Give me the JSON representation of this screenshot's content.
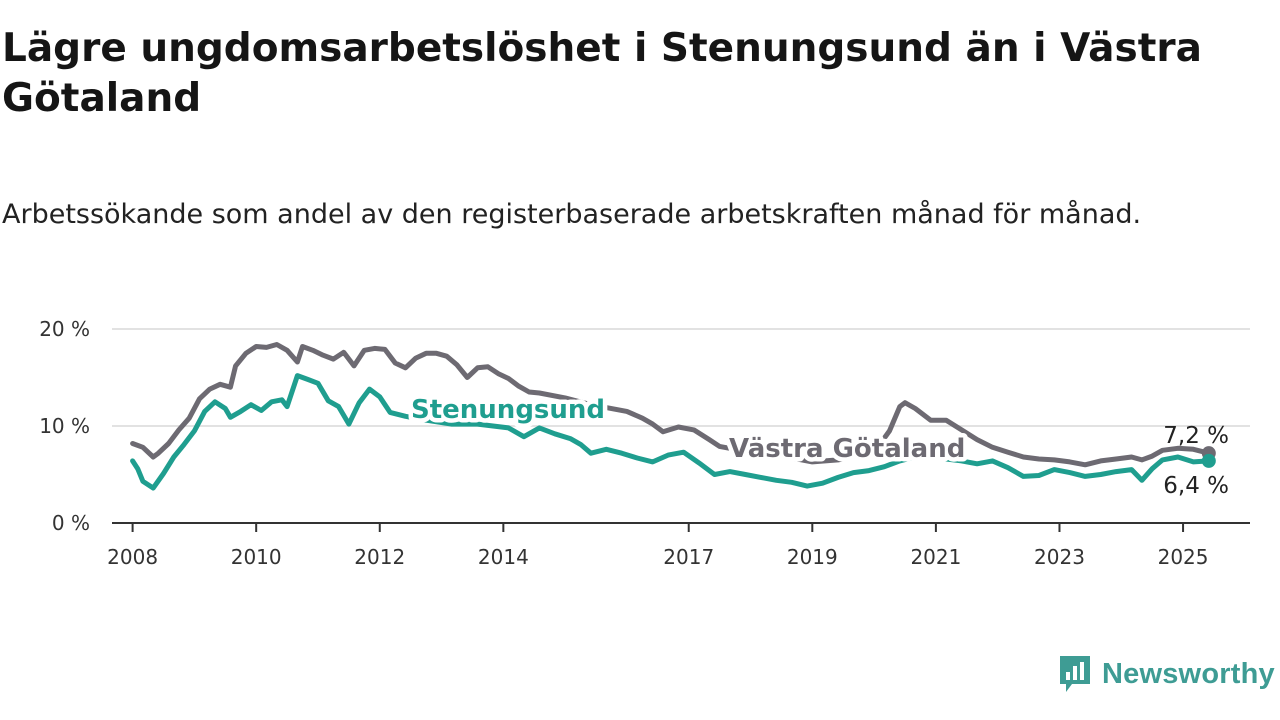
{
  "title": "Lägre ungdomsarbetslöshet i Stenungsund än i Västra Götaland",
  "subtitle": "Arbetssökande som andel av den registerbaserade arbetskraften månad för månad.",
  "brand": {
    "name": "Newsworthy",
    "icon": "newsworthy-logo-icon",
    "color": "#3e9c94"
  },
  "chart_data": {
    "type": "line",
    "x_type": "date",
    "ylim": [
      0,
      20
    ],
    "xlim": [
      "2007-09",
      "2026-02"
    ],
    "y_ticks": [
      {
        "value": 0,
        "label": "0 %"
      },
      {
        "value": 10,
        "label": "10 %"
      },
      {
        "value": 20,
        "label": "20 %"
      }
    ],
    "x_ticks": [
      {
        "value": "2008-01",
        "label": "2008"
      },
      {
        "value": "2010-01",
        "label": "2010"
      },
      {
        "value": "2012-01",
        "label": "2012"
      },
      {
        "value": "2014-01",
        "label": "2014"
      },
      {
        "value": "2017-01",
        "label": "2017"
      },
      {
        "value": "2019-01",
        "label": "2019"
      },
      {
        "value": "2021-01",
        "label": "2021"
      },
      {
        "value": "2023-01",
        "label": "2023"
      },
      {
        "value": "2025-01",
        "label": "2025"
      }
    ],
    "grid": true,
    "series": [
      {
        "name": "Västra Götaland",
        "color": "#6d6a72",
        "end_label": "7,2 %",
        "points": [
          [
            "2008-01",
            8.2
          ],
          [
            "2008-03",
            7.8
          ],
          [
            "2008-05",
            6.8
          ],
          [
            "2008-06",
            7.2
          ],
          [
            "2008-08",
            8.2
          ],
          [
            "2008-10",
            9.6
          ],
          [
            "2008-12",
            10.8
          ],
          [
            "2009-02",
            12.8
          ],
          [
            "2009-04",
            13.8
          ],
          [
            "2009-06",
            14.3
          ],
          [
            "2009-08",
            14.0
          ],
          [
            "2009-09",
            16.2
          ],
          [
            "2009-11",
            17.5
          ],
          [
            "2010-01",
            18.2
          ],
          [
            "2010-03",
            18.1
          ],
          [
            "2010-05",
            18.4
          ],
          [
            "2010-07",
            17.8
          ],
          [
            "2010-09",
            16.6
          ],
          [
            "2010-10",
            18.2
          ],
          [
            "2010-12",
            17.8
          ],
          [
            "2011-02",
            17.3
          ],
          [
            "2011-04",
            16.9
          ],
          [
            "2011-06",
            17.6
          ],
          [
            "2011-08",
            16.2
          ],
          [
            "2011-10",
            17.8
          ],
          [
            "2011-12",
            18.0
          ],
          [
            "2012-02",
            17.9
          ],
          [
            "2012-04",
            16.5
          ],
          [
            "2012-06",
            16.0
          ],
          [
            "2012-08",
            17.0
          ],
          [
            "2012-10",
            17.5
          ],
          [
            "2012-12",
            17.5
          ],
          [
            "2013-02",
            17.2
          ],
          [
            "2013-04",
            16.3
          ],
          [
            "2013-06",
            15.0
          ],
          [
            "2013-08",
            16.0
          ],
          [
            "2013-10",
            16.1
          ],
          [
            "2013-12",
            15.4
          ],
          [
            "2014-02",
            14.9
          ],
          [
            "2014-04",
            14.1
          ],
          [
            "2014-06",
            13.5
          ],
          [
            "2014-08",
            13.4
          ],
          [
            "2015-01",
            12.9
          ],
          [
            "2015-06",
            12.2
          ],
          [
            "2016-01",
            11.5
          ],
          [
            "2016-04",
            10.8
          ],
          [
            "2016-06",
            10.2
          ],
          [
            "2016-08",
            9.4
          ],
          [
            "2016-11",
            9.9
          ],
          [
            "2017-02",
            9.6
          ],
          [
            "2017-05",
            8.6
          ],
          [
            "2017-07",
            7.9
          ],
          [
            "2018-01",
            7.3
          ],
          [
            "2018-06",
            7.0
          ],
          [
            "2019-01",
            6.3
          ],
          [
            "2019-06",
            6.5
          ],
          [
            "2020-01",
            7.3
          ],
          [
            "2020-04",
            9.5
          ],
          [
            "2020-06",
            12.0
          ],
          [
            "2020-07",
            12.4
          ],
          [
            "2020-09",
            11.8
          ],
          [
            "2020-12",
            10.6
          ],
          [
            "2021-03",
            10.6
          ],
          [
            "2021-06",
            9.6
          ],
          [
            "2021-09",
            8.6
          ],
          [
            "2021-12",
            7.8
          ],
          [
            "2022-03",
            7.3
          ],
          [
            "2022-06",
            6.8
          ],
          [
            "2022-09",
            6.6
          ],
          [
            "2022-12",
            6.5
          ],
          [
            "2023-03",
            6.3
          ],
          [
            "2023-06",
            6.0
          ],
          [
            "2023-09",
            6.4
          ],
          [
            "2023-12",
            6.6
          ],
          [
            "2024-03",
            6.8
          ],
          [
            "2024-05",
            6.5
          ],
          [
            "2024-07",
            6.9
          ],
          [
            "2024-09",
            7.5
          ],
          [
            "2024-12",
            7.7
          ],
          [
            "2025-03",
            7.6
          ],
          [
            "2025-06",
            7.2
          ]
        ]
      },
      {
        "name": "Stenungsund",
        "color": "#1f9e8f",
        "end_label": "6,4 %",
        "points": [
          [
            "2008-01",
            6.4
          ],
          [
            "2008-02",
            5.6
          ],
          [
            "2008-03",
            4.3
          ],
          [
            "2008-05",
            3.6
          ],
          [
            "2008-07",
            5.1
          ],
          [
            "2008-09",
            6.8
          ],
          [
            "2008-11",
            8.1
          ],
          [
            "2009-01",
            9.5
          ],
          [
            "2009-03",
            11.5
          ],
          [
            "2009-05",
            12.5
          ],
          [
            "2009-07",
            11.8
          ],
          [
            "2009-08",
            10.9
          ],
          [
            "2009-10",
            11.5
          ],
          [
            "2009-12",
            12.2
          ],
          [
            "2010-02",
            11.6
          ],
          [
            "2010-04",
            12.5
          ],
          [
            "2010-06",
            12.7
          ],
          [
            "2010-07",
            12.0
          ],
          [
            "2010-09",
            15.2
          ],
          [
            "2010-11",
            14.8
          ],
          [
            "2011-01",
            14.4
          ],
          [
            "2011-03",
            12.6
          ],
          [
            "2011-05",
            12.0
          ],
          [
            "2011-07",
            10.2
          ],
          [
            "2011-09",
            12.4
          ],
          [
            "2011-11",
            13.8
          ],
          [
            "2012-01",
            13.0
          ],
          [
            "2012-03",
            11.4
          ],
          [
            "2012-06",
            11.0
          ],
          [
            "2012-10",
            10.6
          ],
          [
            "2013-03",
            10.2
          ],
          [
            "2013-08",
            10.2
          ],
          [
            "2014-02",
            9.8
          ],
          [
            "2014-05",
            8.9
          ],
          [
            "2014-08",
            9.8
          ],
          [
            "2014-11",
            9.2
          ],
          [
            "2015-02",
            8.7
          ],
          [
            "2015-04",
            8.1
          ],
          [
            "2015-06",
            7.2
          ],
          [
            "2015-09",
            7.6
          ],
          [
            "2015-12",
            7.2
          ],
          [
            "2016-03",
            6.7
          ],
          [
            "2016-06",
            6.3
          ],
          [
            "2016-09",
            7.0
          ],
          [
            "2016-12",
            7.3
          ],
          [
            "2017-03",
            6.2
          ],
          [
            "2017-06",
            5.0
          ],
          [
            "2017-09",
            5.3
          ],
          [
            "2017-12",
            5.0
          ],
          [
            "2018-03",
            4.7
          ],
          [
            "2018-06",
            4.4
          ],
          [
            "2018-09",
            4.2
          ],
          [
            "2018-12",
            3.8
          ],
          [
            "2019-03",
            4.1
          ],
          [
            "2019-06",
            4.7
          ],
          [
            "2019-09",
            5.2
          ],
          [
            "2019-12",
            5.4
          ],
          [
            "2020-03",
            5.8
          ],
          [
            "2020-06",
            6.4
          ],
          [
            "2020-09",
            6.8
          ],
          [
            "2020-12",
            7.1
          ],
          [
            "2021-03",
            6.6
          ],
          [
            "2021-06",
            6.4
          ],
          [
            "2021-09",
            6.1
          ],
          [
            "2021-12",
            6.4
          ],
          [
            "2022-03",
            5.7
          ],
          [
            "2022-06",
            4.8
          ],
          [
            "2022-09",
            4.9
          ],
          [
            "2022-12",
            5.5
          ],
          [
            "2023-03",
            5.2
          ],
          [
            "2023-06",
            4.8
          ],
          [
            "2023-09",
            5.0
          ],
          [
            "2023-12",
            5.3
          ],
          [
            "2024-03",
            5.5
          ],
          [
            "2024-05",
            4.4
          ],
          [
            "2024-07",
            5.6
          ],
          [
            "2024-09",
            6.5
          ],
          [
            "2024-12",
            6.8
          ],
          [
            "2025-03",
            6.3
          ],
          [
            "2025-06",
            6.4
          ]
        ]
      }
    ]
  }
}
